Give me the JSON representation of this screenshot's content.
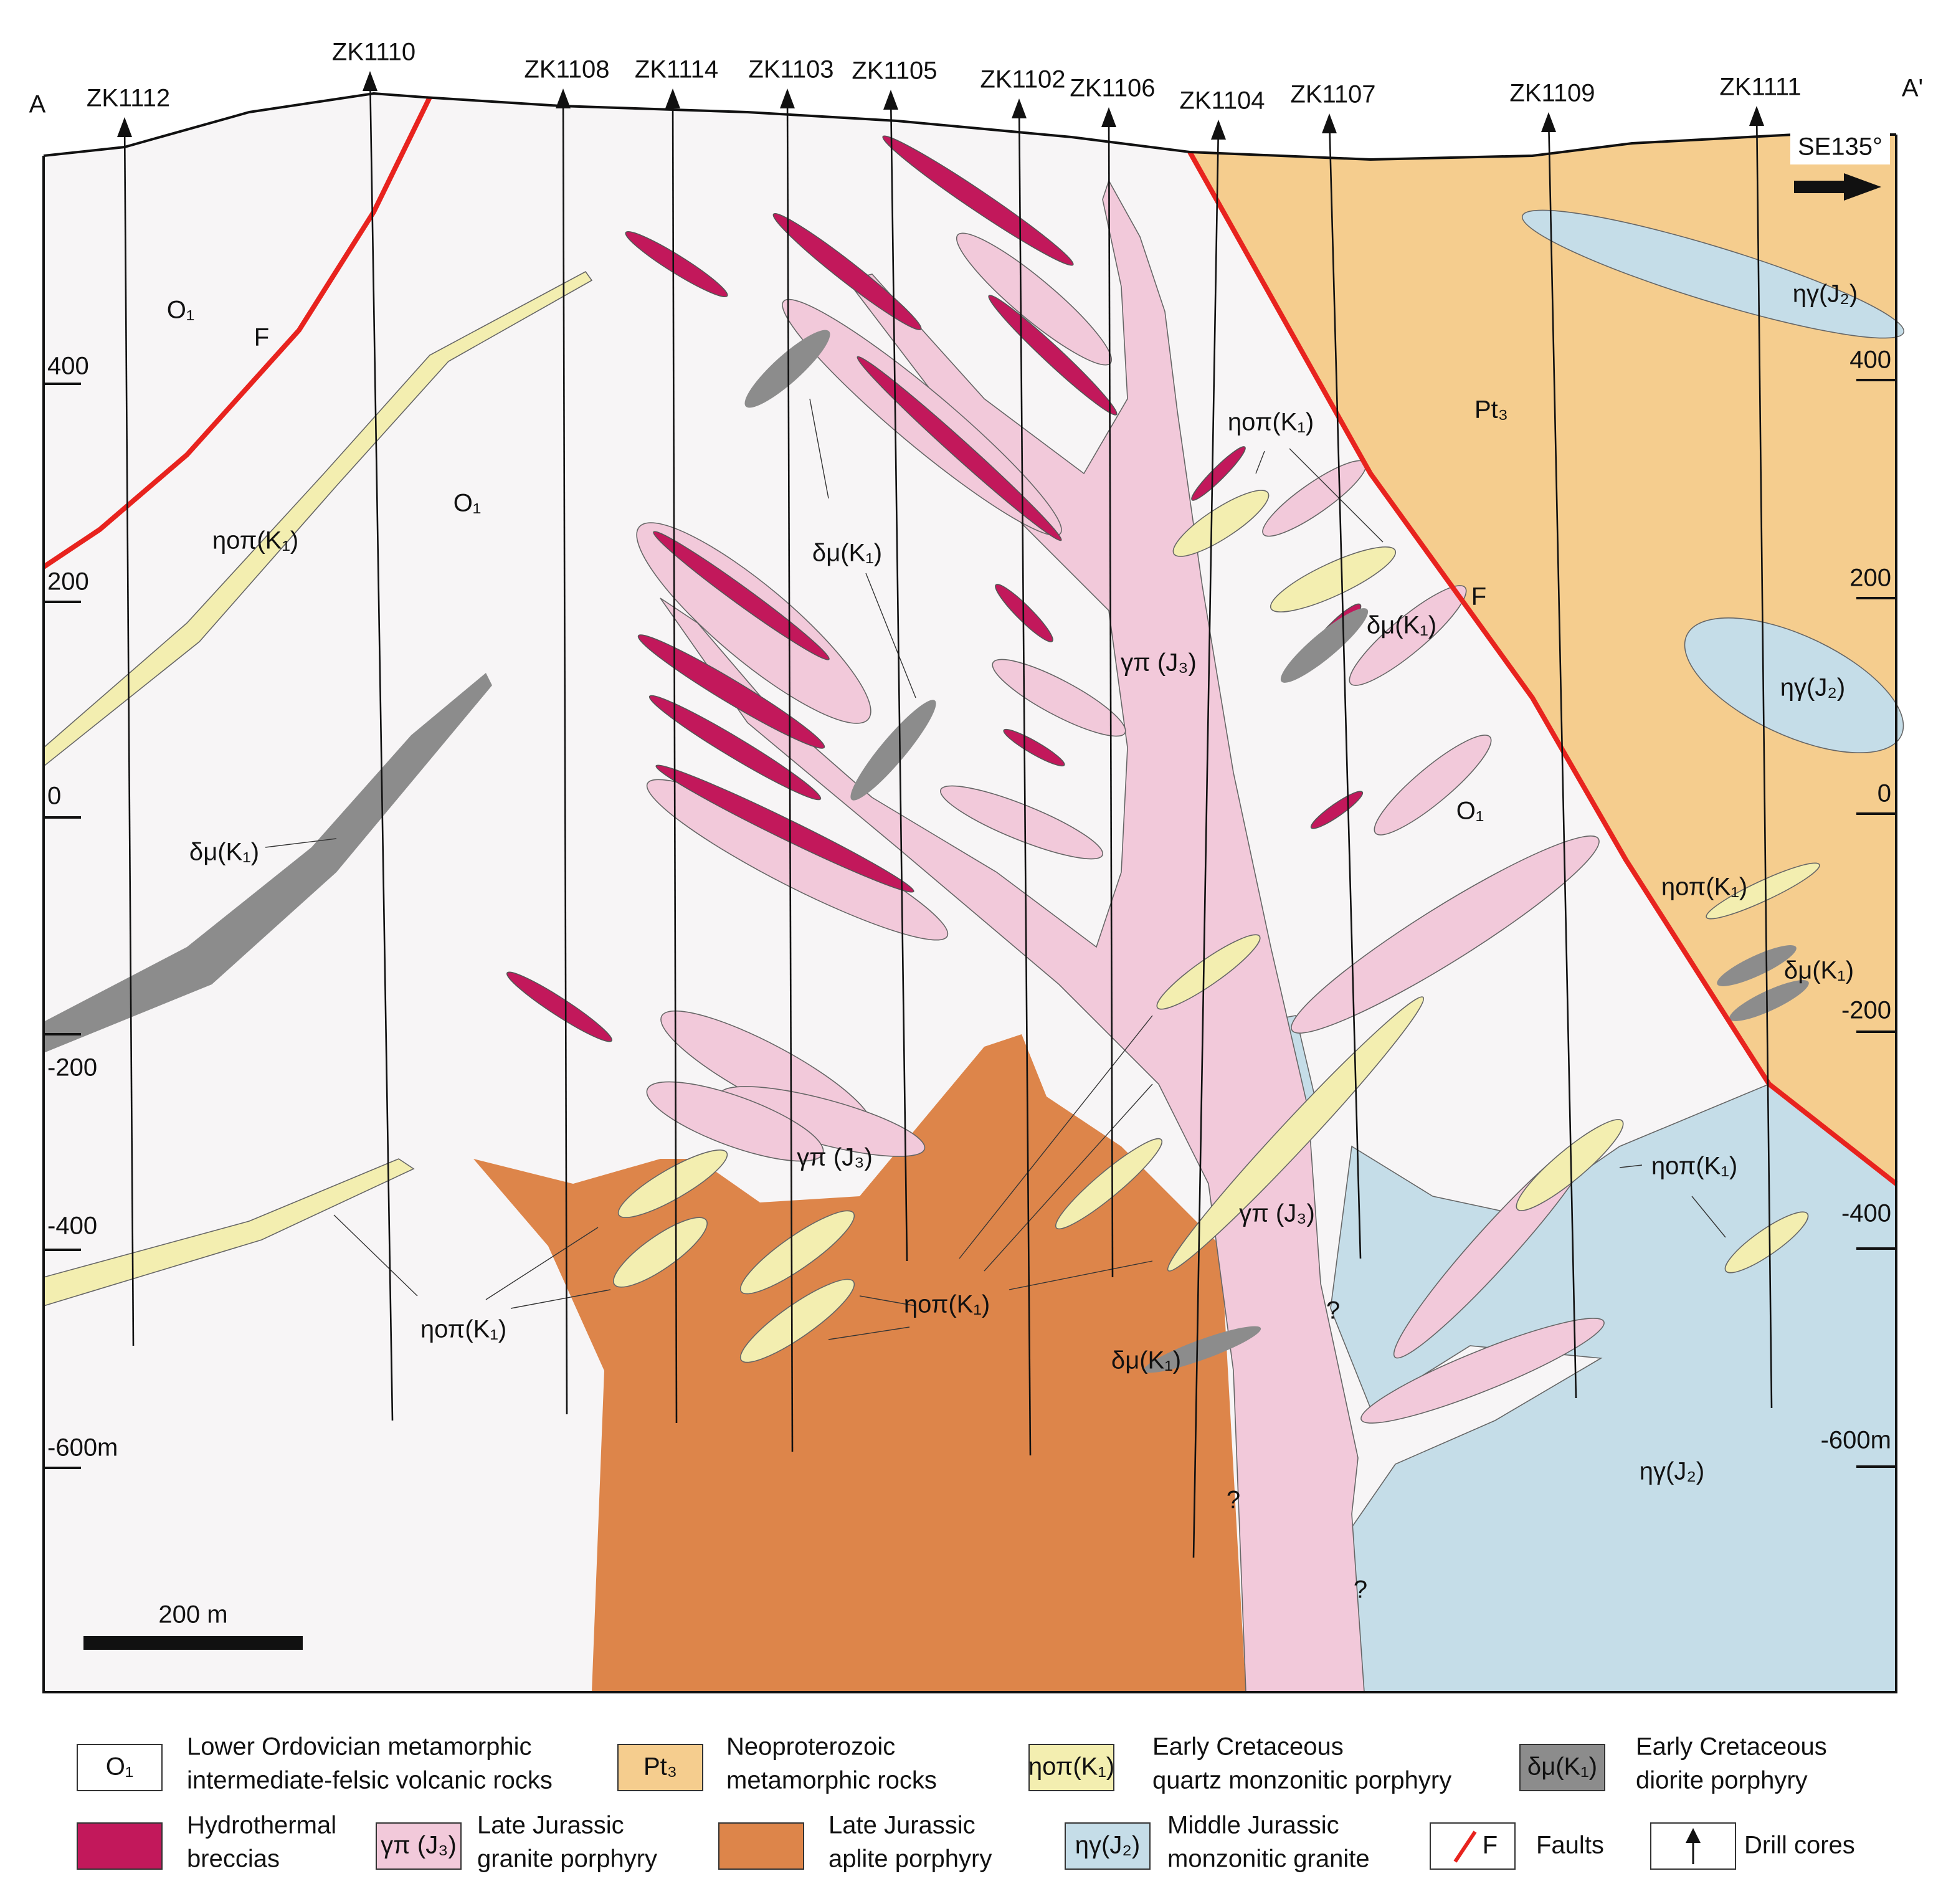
{
  "section": {
    "start": "A",
    "end": "A'",
    "direction": "SE135°",
    "scale_bar": "200 m"
  },
  "drill_holes": [
    "ZK1112",
    "ZK1110",
    "ZK1108",
    "ZK1114",
    "ZK1103",
    "ZK1105",
    "ZK1102",
    "ZK1106",
    "ZK1104",
    "ZK1107",
    "ZK1109",
    "ZK1111"
  ],
  "elevation_left": [
    "400",
    "200",
    "0",
    "-200",
    "-400",
    "-600m"
  ],
  "elevation_right": [
    "400",
    "200",
    "0",
    "-200",
    "-400",
    "-600m"
  ],
  "map_labels": [
    "O₁",
    "F",
    "O₁",
    "ηοπ(K₁)",
    "δμ(K₁)",
    "δμ(K₁)",
    "γπ (J₃)",
    "ηοπ(K₁)",
    "δμ(K₁)",
    "F",
    "Pt₃",
    "ηγ(J₂)",
    "ηγ(J₂)",
    "O₁",
    "ηοπ(K₁)",
    "δμ(K₁)",
    "γπ (J₃)",
    "ηοπ(K₁)",
    "γπ (J₃)",
    "ηοπ(K₁)",
    "ηοπ(K₁)",
    "δμ(K₁)",
    "ηγ(J₂)",
    "?",
    "?",
    "?"
  ],
  "legend": [
    {
      "symbol": "O₁",
      "label": [
        "Lower Ordovician metamorphic",
        "intermediate-felsic volcanic rocks"
      ]
    },
    {
      "symbol": "Pt₃",
      "label": [
        "Neoproterozoic",
        "metamorphic rocks"
      ]
    },
    {
      "symbol": "ηοπ(K₁)",
      "label": [
        "Early Cretaceous",
        "quartz monzonitic porphyry"
      ]
    },
    {
      "symbol": "δμ(K₁)",
      "label": [
        "Early Cretaceous",
        "diorite porphyry"
      ]
    },
    {
      "label": [
        "Hydrothermal",
        "breccias"
      ]
    },
    {
      "symbol": "γπ (J₃)",
      "label": [
        "Late Jurassic",
        "granite porphyry"
      ]
    },
    {
      "label": [
        "Late Jurassic",
        "aplite porphyry"
      ]
    },
    {
      "symbol": "ηγ(J₂)",
      "label": [
        "Middle Jurassic",
        "monzonitic granite"
      ]
    },
    {
      "symbol": "F",
      "label": [
        "Faults"
      ]
    },
    {
      "label": [
        "Drill cores"
      ]
    }
  ]
}
